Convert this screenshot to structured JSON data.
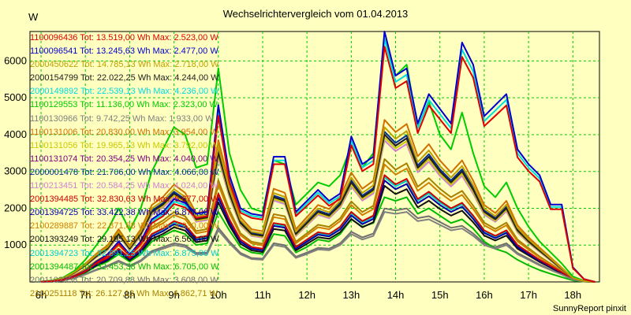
{
  "chart_data": {
    "type": "line",
    "title": "Wechselrichtervergleich vom 01.04.2013",
    "ylabel": "W",
    "footer": "SunnyReport pinxit",
    "x_ticks": [
      "6h",
      "7h",
      "8h",
      "9h",
      "10h",
      "11h",
      "12h",
      "13h",
      "14h",
      "15h",
      "16h",
      "17h",
      "18h"
    ],
    "y_ticks": [
      1000,
      2000,
      3000,
      4000,
      5000,
      6000
    ],
    "xlim": [
      5.75,
      18.6
    ],
    "ylim": [
      0,
      6800
    ],
    "grid": true,
    "shape_x": [
      6,
      6.25,
      6.5,
      6.75,
      7,
      7.25,
      7.5,
      7.75,
      8,
      8.25,
      8.5,
      8.75,
      9,
      9.25,
      9.5,
      9.75,
      10,
      10.25,
      10.5,
      10.75,
      11,
      11.25,
      11.5,
      11.75,
      12,
      12.25,
      12.5,
      12.75,
      13,
      13.25,
      13.5,
      13.75,
      14,
      14.25,
      14.5,
      14.75,
      15,
      15.25,
      15.5,
      15.75,
      16,
      16.25,
      16.5,
      16.75,
      17,
      17.25,
      17.5,
      17.75,
      18,
      18.25,
      18.5
    ],
    "shapes": {
      "big": [
        5,
        20,
        60,
        150,
        300,
        550,
        750,
        1100,
        750,
        1100,
        1700,
        1900,
        2250,
        2150,
        1850,
        1900,
        4800,
        2900,
        2000,
        1850,
        1800,
        3400,
        3400,
        1900,
        2200,
        2500,
        2200,
        2400,
        3950,
        3200,
        3400,
        6800,
        5600,
        5800,
        4300,
        5100,
        4700,
        4300,
        6500,
        5900,
        4500,
        4800,
        5100,
        3600,
        3200,
        2900,
        2100,
        2100,
        400,
        80,
        0
      ],
      "large": [
        10,
        40,
        120,
        300,
        600,
        1000,
        1400,
        2000,
        1400,
        2000,
        3000,
        3600,
        4200,
        4000,
        3100,
        3200,
        5800,
        3500,
        2500,
        2000,
        1900,
        3300,
        3200,
        2100,
        2400,
        2700,
        2600,
        2900,
        3700,
        3100,
        3500,
        6600,
        5600,
        5900,
        4200,
        4900,
        4000,
        3600,
        4600,
        3500,
        2600,
        2300,
        2700,
        2000,
        1500,
        1100,
        800,
        500,
        150,
        30,
        0
      ],
      "mid": [
        5,
        30,
        100,
        250,
        450,
        700,
        900,
        1300,
        900,
        1300,
        1900,
        2100,
        2400,
        2200,
        1700,
        1750,
        3500,
        2400,
        1600,
        1300,
        1250,
        2300,
        2200,
        1300,
        1600,
        1900,
        1800,
        2100,
        2700,
        2300,
        2500,
        4000,
        3700,
        3900,
        3100,
        3400,
        3000,
        2700,
        3000,
        2500,
        1900,
        1700,
        2000,
        1400,
        1100,
        850,
        600,
        350,
        100,
        20,
        0
      ],
      "low": [
        5,
        20,
        60,
        160,
        300,
        500,
        650,
        900,
        650,
        900,
        1300,
        1450,
        1650,
        1550,
        1200,
        1250,
        2400,
        1700,
        1150,
        950,
        900,
        1600,
        1550,
        950,
        1150,
        1350,
        1300,
        1500,
        1900,
        1650,
        1800,
        2900,
        2650,
        2800,
        2250,
        2450,
        2200,
        2000,
        2150,
        1800,
        1400,
        1250,
        1400,
        1000,
        800,
        600,
        430,
        260,
        80,
        15,
        0
      ],
      "grey": [
        5,
        10,
        40,
        100,
        200,
        320,
        420,
        550,
        420,
        560,
        800,
        900,
        1000,
        950,
        750,
        760,
        1400,
        1050,
        750,
        620,
        600,
        1000,
        950,
        650,
        760,
        880,
        860,
        1000,
        1300,
        1150,
        1250,
        1900,
        1850,
        1900,
        1650,
        1700,
        1550,
        1400,
        1450,
        1250,
        1000,
        900,
        1000,
        750,
        600,
        450,
        320,
        200,
        60,
        10,
        0
      ],
      "green": [
        5,
        15,
        50,
        130,
        250,
        430,
        550,
        750,
        550,
        750,
        1100,
        1250,
        1400,
        1300,
        1000,
        1050,
        1900,
        1400,
        950,
        800,
        760,
        1300,
        1250,
        800,
        950,
        1150,
        1100,
        1300,
        1700,
        1500,
        1600,
        2300,
        2200,
        2300,
        1850,
        2000,
        1800,
        1600,
        1700,
        1450,
        1100,
        900,
        800,
        600,
        450,
        320,
        220,
        130,
        40,
        10,
        0
      ]
    },
    "series": [
      {
        "name": "1100096436 Tot: 13.519,00 Wh Max: 2.523,00 W",
        "color": "#dd0000",
        "shape": "big",
        "scale": 0.94
      },
      {
        "name": "1100096541 Tot: 13.245,63 Wh Max: 2.477,00 W",
        "color": "#0000cc",
        "shape": "big",
        "scale": 1.0
      },
      {
        "name": "2000450622 Tot: 14.785,13 Wh Max: 2.718,00 W",
        "color": "#c0a000",
        "shape": "mid",
        "scale": 1.05
      },
      {
        "name": "2000154799 Tot: 22.022,25 Wh Max: 4.244,00 W",
        "color": "#202020",
        "shape": "mid",
        "scale": 1.0
      },
      {
        "name": "2000149892 Tot: 22.539,13 Wh Max: 4.236,00 W",
        "color": "#00dddd",
        "shape": "big",
        "scale": 0.97
      },
      {
        "name": "1100129553 Tot: 11.136,00 Wh Max: 2.323,00 W",
        "color": "#00cc00",
        "shape": "large",
        "scale": 1.0
      },
      {
        "name": "1100130966 Tot: 9.742,25 Wh Max: 1.933,00 W",
        "color": "#808080",
        "shape": "grey",
        "scale": 1.0
      },
      {
        "name": "1100131006 Tot: 20.830,00 Wh Max: 3.954,00 W",
        "color": "#d07000",
        "shape": "mid",
        "scale": 1.1
      },
      {
        "name": "1100131056 Tot: 19.965,13 Wh Max: 3.792,00 W",
        "color": "#c8c800",
        "shape": "mid",
        "scale": 0.98
      },
      {
        "name": "1100131074 Tot: 20.354,25 Wh Max: 4.040,00 W",
        "color": "#800080",
        "shape": "mid",
        "scale": 1.0
      },
      {
        "name": "2000001478 Tot: 21.706,00 Wh Max: 4.066,00 W",
        "color": "#003090",
        "shape": "mid",
        "scale": 1.02
      },
      {
        "name": "1100213451 Tot: 20.584,25 Wh Max: 4.024,00 W",
        "color": "#d080d0",
        "shape": "mid",
        "scale": 0.96
      },
      {
        "name": "2001394485 Tot: 32.830,63 Wh Max: 6.677,00 W",
        "color": "#cc0000",
        "shape": "low",
        "scale": 1.0
      },
      {
        "name": "2001394725 Tot: 33.422,38 Wh Max: 6.877,00 W",
        "color": "#0000aa",
        "shape": "low",
        "scale": 0.95
      },
      {
        "name": "2100289887 Tot: 22.871,88 Wh Max: 4.230,00 W",
        "color": "#d08000",
        "shape": "low",
        "scale": 1.1
      },
      {
        "name": "2001393249 Tot: 29.195,13 Wh Max: 6.567,00 W",
        "color": "#101010",
        "shape": "low",
        "scale": 0.9
      },
      {
        "name": "2001394723 Tot: 32.891,25 Wh Max: 6.875,00 W",
        "color": "#00cccc",
        "shape": "low",
        "scale": 0.98
      },
      {
        "name": "2001394487 Tot: 32.453,38 Wh Max: 6.705,00 W",
        "color": "#00bb00",
        "shape": "green",
        "scale": 1.0
      },
      {
        "name": "2001102358 Tot: 20.709,88 Wh Max: 3.608,00 W",
        "color": "#707070",
        "shape": "grey",
        "scale": 1.05
      },
      {
        "name": "2100251118 Tot: 26.127,13 Wh Max: 4.862,71 W",
        "color": "#a88000",
        "shape": "low",
        "scale": 1.15
      }
    ]
  }
}
